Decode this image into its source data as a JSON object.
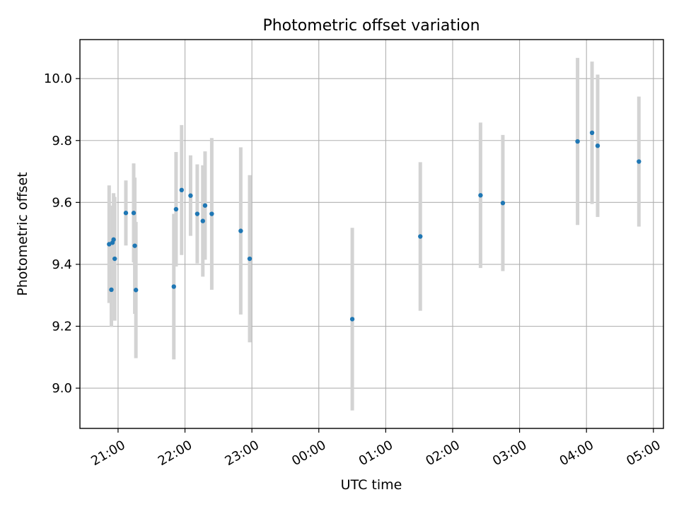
{
  "chart_data": {
    "type": "scatter",
    "title": "Photometric offset variation",
    "xlabel": "UTC time",
    "ylabel": "Photometric offset",
    "x_tick_labels": [
      "21:00",
      "22:00",
      "23:00",
      "00:00",
      "01:00",
      "02:00",
      "03:00",
      "04:00",
      "05:00"
    ],
    "x_tick_hours": [
      21,
      22,
      23,
      24,
      25,
      26,
      27,
      28,
      29
    ],
    "y_ticks": [
      9.0,
      9.2,
      9.4,
      9.6,
      9.8,
      10.0
    ],
    "y_tick_labels": [
      "9.0",
      "9.2",
      "9.4",
      "9.6",
      "9.8",
      "10.0"
    ],
    "xlim_hours": [
      20.43,
      29.15
    ],
    "ylim": [
      8.87,
      10.126
    ],
    "grid": true,
    "colors": {
      "marker": "#1f77b4",
      "errorbar": "#d3d3d3",
      "grid": "#b0b0b0"
    },
    "points": [
      {
        "time": "20:52",
        "offset": 9.465,
        "err": 0.19
      },
      {
        "time": "20:54",
        "offset": 9.318,
        "err": 0.12
      },
      {
        "time": "20:55",
        "offset": 9.47,
        "err": 0.12
      },
      {
        "time": "20:56",
        "offset": 9.48,
        "err": 0.15
      },
      {
        "time": "20:57",
        "offset": 9.418,
        "err": 0.2
      },
      {
        "time": "21:07",
        "offset": 9.566,
        "err": 0.105
      },
      {
        "time": "21:14",
        "offset": 9.566,
        "err": 0.16
      },
      {
        "time": "21:15",
        "offset": 9.46,
        "err": 0.22
      },
      {
        "time": "21:16",
        "offset": 9.317,
        "err": 0.22
      },
      {
        "time": "21:50",
        "offset": 9.328,
        "err": 0.235
      },
      {
        "time": "21:52",
        "offset": 9.578,
        "err": 0.185
      },
      {
        "time": "21:57",
        "offset": 9.64,
        "err": 0.21
      },
      {
        "time": "22:05",
        "offset": 9.622,
        "err": 0.13
      },
      {
        "time": "22:11",
        "offset": 9.563,
        "err": 0.16
      },
      {
        "time": "22:16",
        "offset": 9.54,
        "err": 0.18
      },
      {
        "time": "22:18",
        "offset": 9.59,
        "err": 0.175
      },
      {
        "time": "22:24",
        "offset": 9.563,
        "err": 0.245
      },
      {
        "time": "22:50",
        "offset": 9.508,
        "err": 0.27
      },
      {
        "time": "22:58",
        "offset": 9.418,
        "err": 0.27
      },
      {
        "time": "00:30",
        "offset": 9.223,
        "err": 0.295
      },
      {
        "time": "01:31",
        "offset": 9.49,
        "err": 0.24
      },
      {
        "time": "02:25",
        "offset": 9.623,
        "err": 0.235
      },
      {
        "time": "02:45",
        "offset": 9.598,
        "err": 0.22
      },
      {
        "time": "03:52",
        "offset": 9.797,
        "err": 0.27
      },
      {
        "time": "04:05",
        "offset": 9.825,
        "err": 0.23
      },
      {
        "time": "04:10",
        "offset": 9.783,
        "err": 0.23
      },
      {
        "time": "04:47",
        "offset": 9.732,
        "err": 0.21
      }
    ]
  }
}
